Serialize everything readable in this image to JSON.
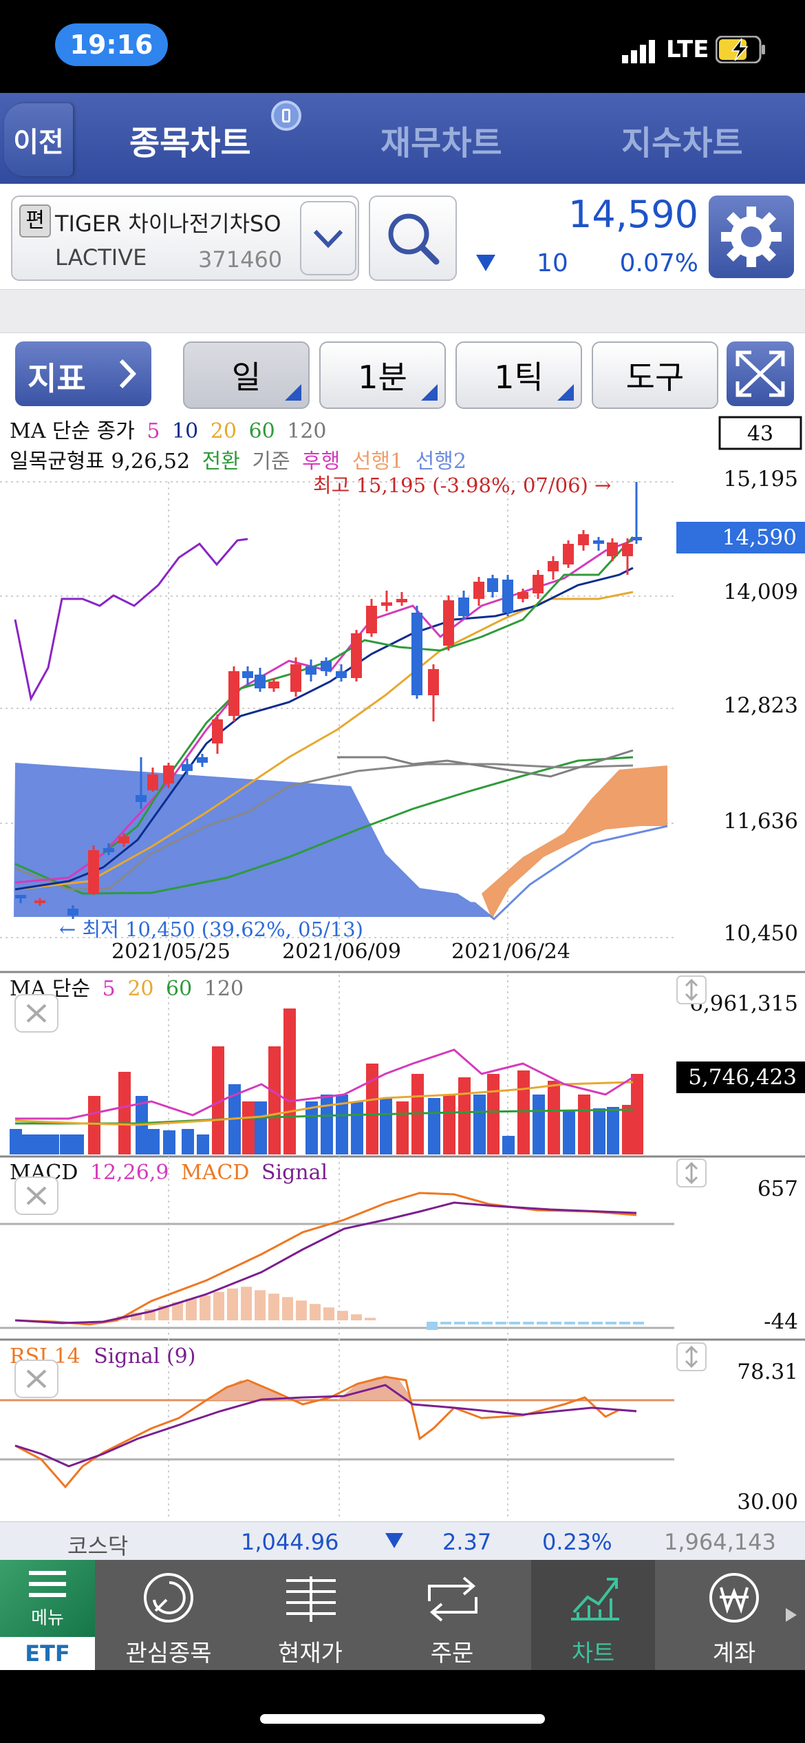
{
  "status": {
    "time": "19:16",
    "network": "LTE"
  },
  "nav": {
    "back": "이전",
    "tabs": [
      "종목차트",
      "재무차트",
      "지수차트"
    ]
  },
  "stock": {
    "badge": "편",
    "name_line1": "TIGER 차이나전기차SO",
    "name_line2": "LACTIVE",
    "code": "371460",
    "price": "14,590",
    "change": "10",
    "change_pct": "0.07%"
  },
  "toolbar": {
    "indicator": "지표",
    "period": "일",
    "minute": "1분",
    "tick": "1틱",
    "tools": "도구"
  },
  "main_chart": {
    "ma_title": "MA 단순 종가",
    "ma_periods": [
      "5",
      "10",
      "20",
      "60",
      "120"
    ],
    "ichimoku_title": "일목균형표 9,26,52",
    "ichimoku_lines": [
      "전환",
      "기준",
      "후행",
      "선행1",
      "선행2"
    ],
    "count_box": "43",
    "high_label": "최고 15,195 (-3.98%, 07/06) →",
    "low_label": "← 최저 10,450 (39.62%, 05/13)",
    "price_ticks": [
      "15,195",
      "14,009",
      "12,823",
      "11,636",
      "10,450"
    ],
    "current_price": "14,590",
    "dates": [
      "2021/05/25",
      "2021/06/09",
      "2021/06/24"
    ]
  },
  "volume": {
    "title": "MA 단순",
    "periods": [
      "5",
      "20",
      "60",
      "120"
    ],
    "max": "6,961,315",
    "current": "5,746,423"
  },
  "macd": {
    "title": "MACD",
    "params": "12,26,9",
    "l1": "MACD",
    "l2": "Signal",
    "max": "657",
    "min": "-44"
  },
  "rsi": {
    "title": "RSI 14",
    "signal": "Signal (9)",
    "max": "78.31",
    "min": "30.00"
  },
  "index_bar": {
    "name": "코스닥",
    "value": "1,044.96",
    "change": "2.37",
    "pct": "0.23%",
    "volume": "1,964,143"
  },
  "tabs": [
    {
      "icon": "menu-icon",
      "label": "메뉴",
      "sub": "ETF"
    },
    {
      "icon": "watchlist-icon",
      "label": "관심종목"
    },
    {
      "icon": "price-icon",
      "label": "현재가"
    },
    {
      "icon": "order-icon",
      "label": "주문"
    },
    {
      "icon": "chart-icon",
      "label": "차트"
    },
    {
      "icon": "account-icon",
      "label": "계좌"
    }
  ],
  "colors": {
    "up": "#e8383d",
    "down": "#2d6bd8",
    "navy": "#3a54a5",
    "accent": "#2f84ee"
  }
}
